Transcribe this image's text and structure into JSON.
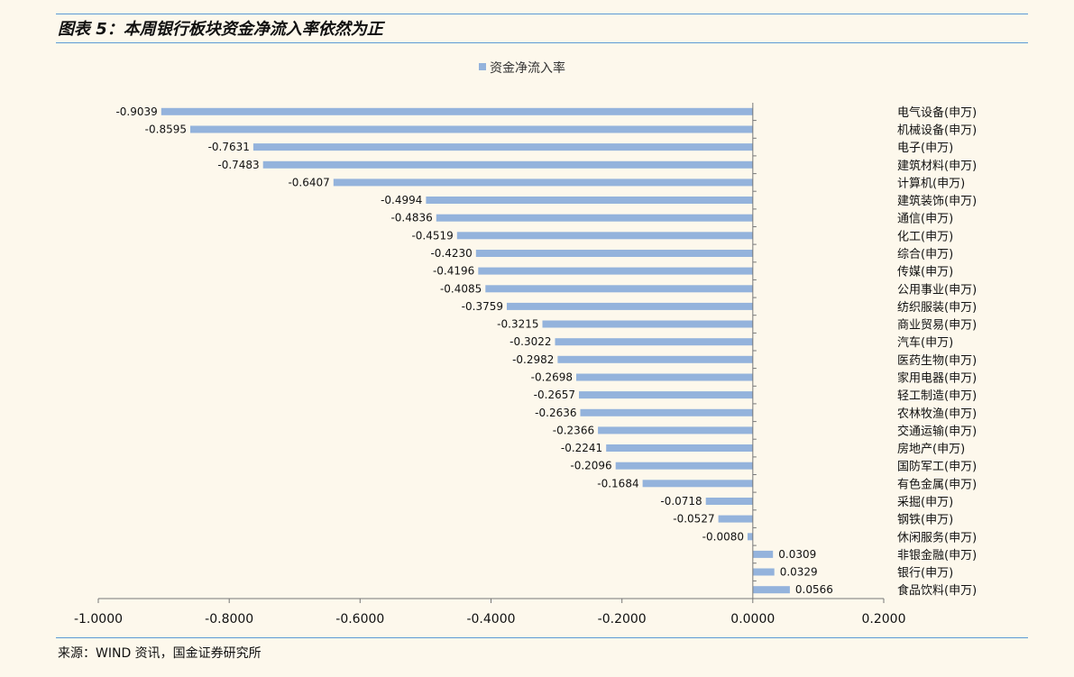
{
  "figure": {
    "title": "图表 5：本周银行板块资金净流入率依然为正",
    "source": "来源：WIND 资讯，国金证券研究所"
  },
  "chart_data": {
    "type": "bar",
    "orientation": "horizontal",
    "legend": {
      "label": "资金净流入率",
      "position": "top"
    },
    "series": [
      {
        "name": "资金净流入率",
        "color": "#94b3dc",
        "categories": [
          "电气设备(申万)",
          "机械设备(申万)",
          "电子(申万)",
          "建筑材料(申万)",
          "计算机(申万)",
          "建筑装饰(申万)",
          "通信(申万)",
          "化工(申万)",
          "综合(申万)",
          "传媒(申万)",
          "公用事业(申万)",
          "纺织服装(申万)",
          "商业贸易(申万)",
          "汽车(申万)",
          "医药生物(申万)",
          "家用电器(申万)",
          "轻工制造(申万)",
          "农林牧渔(申万)",
          "交通运输(申万)",
          "房地产(申万)",
          "国防军工(申万)",
          "有色金属(申万)",
          "采掘(申万)",
          "钢铁(申万)",
          "休闲服务(申万)",
          "非银金融(申万)",
          "银行(申万)",
          "食品饮料(申万)"
        ],
        "values": [
          -0.9039,
          -0.8595,
          -0.7631,
          -0.7483,
          -0.6407,
          -0.4994,
          -0.4836,
          -0.4519,
          -0.423,
          -0.4196,
          -0.4085,
          -0.3759,
          -0.3215,
          -0.3022,
          -0.2982,
          -0.2698,
          -0.2657,
          -0.2636,
          -0.2366,
          -0.2241,
          -0.2096,
          -0.1684,
          -0.0718,
          -0.0527,
          -0.008,
          0.0309,
          0.0329,
          0.0566
        ],
        "value_labels": [
          "-0.9039",
          "-0.8595",
          "-0.7631",
          "-0.7483",
          "-0.6407",
          "-0.4994",
          "-0.4836",
          "-0.4519",
          "-0.4230",
          "-0.4196",
          "-0.4085",
          "-0.3759",
          "-0.3215",
          "-0.3022",
          "-0.2982",
          "-0.2698",
          "-0.2657",
          "-0.2636",
          "-0.2366",
          "-0.2241",
          "-0.2096",
          "-0.1684",
          "-0.0718",
          "-0.0527",
          "-0.0080",
          "0.0309",
          "0.0329",
          "0.0566"
        ]
      }
    ],
    "x_axis": {
      "min": -1.0,
      "max": 0.2,
      "ticks": [
        -1.0,
        -0.8,
        -0.6,
        -0.4,
        -0.2,
        0.0,
        0.2
      ],
      "tick_labels": [
        "-1.0000",
        "-0.8000",
        "-0.6000",
        "-0.4000",
        "-0.2000",
        "0.0000",
        "0.2000"
      ]
    },
    "grid": false
  }
}
